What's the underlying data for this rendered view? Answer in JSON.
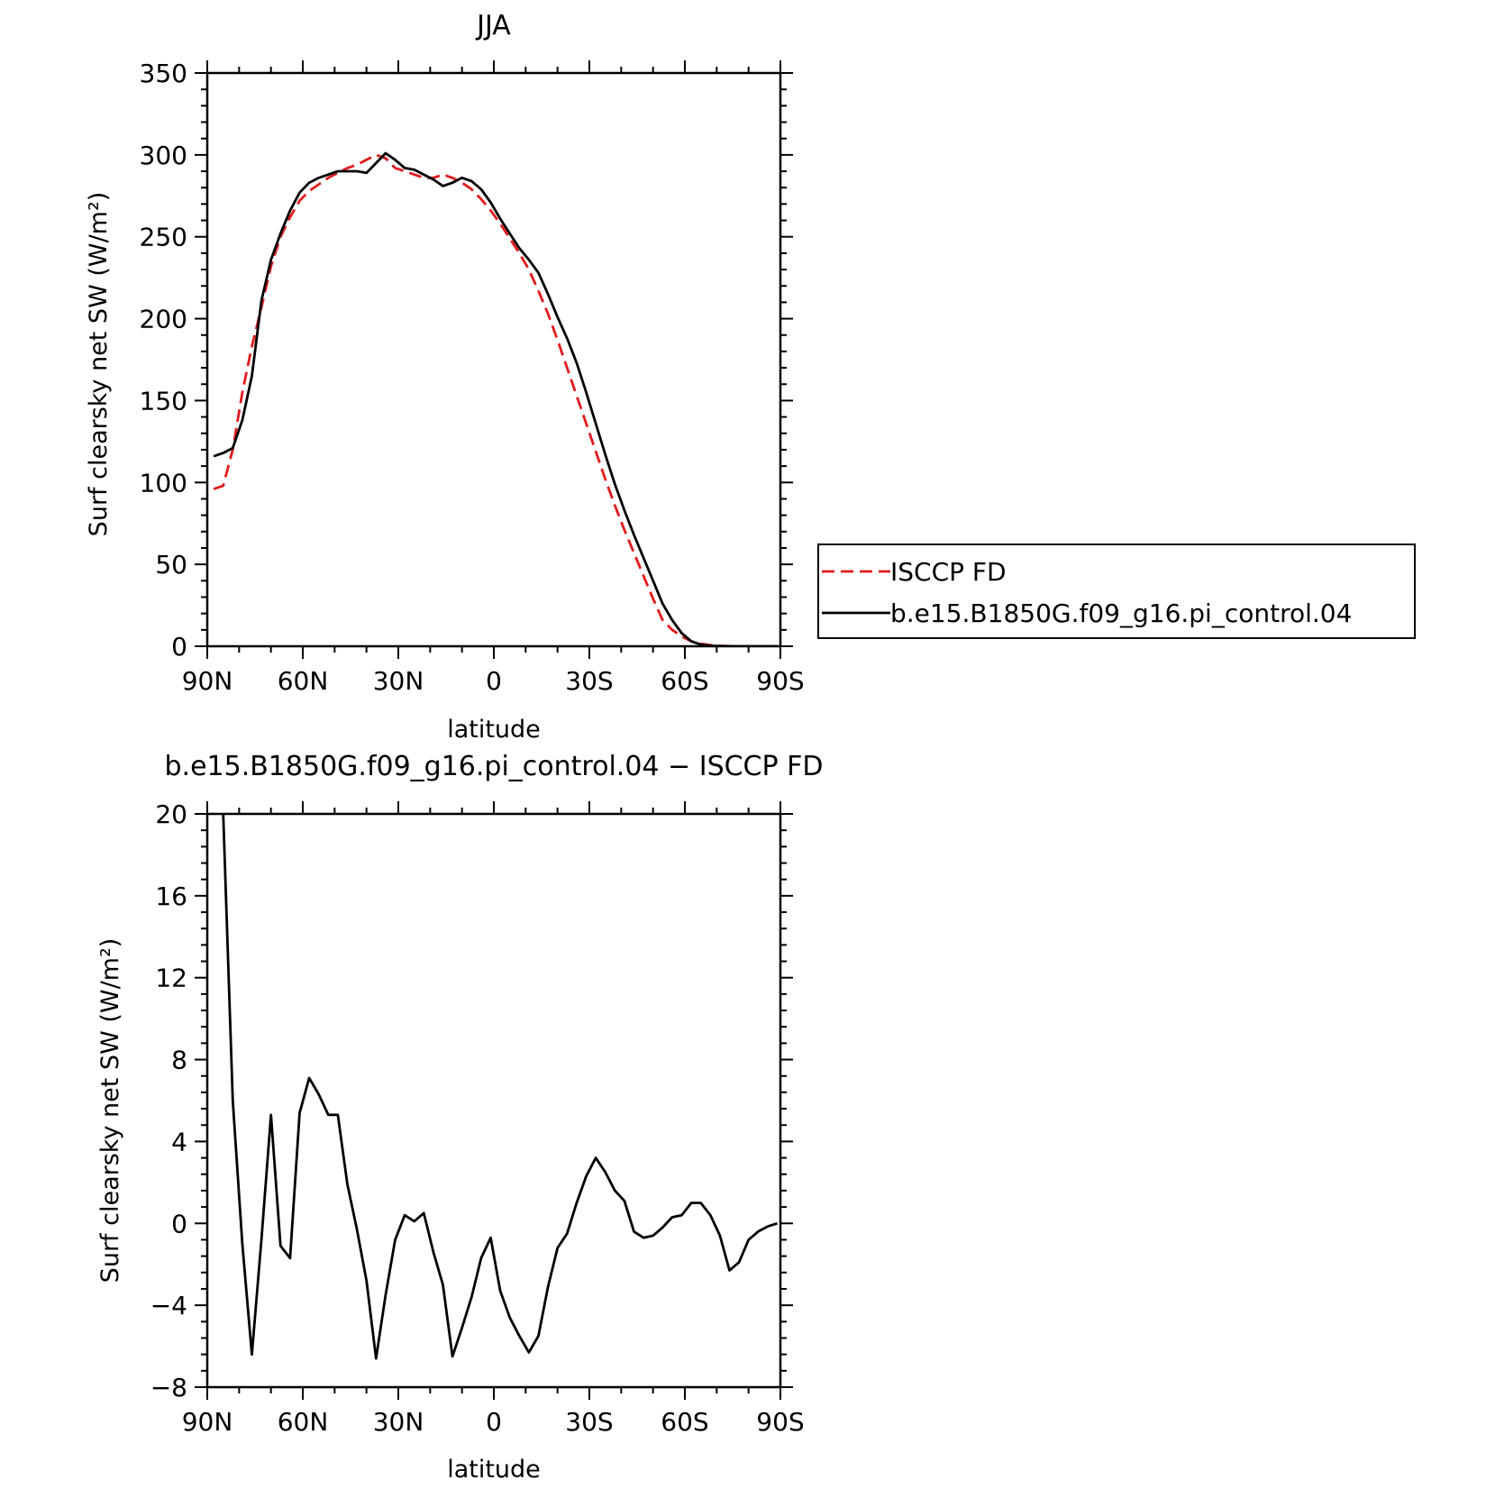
{
  "chart_data": [
    {
      "type": "line",
      "title": "JJA",
      "xlabel": "latitude",
      "ylabel": "Surf clearsky net SW (W/m²)",
      "xlim": [
        90,
        -90
      ],
      "ylim": [
        0,
        350
      ],
      "x_ticks": [
        90,
        60,
        30,
        0,
        -30,
        -60,
        -90
      ],
      "x_tick_labels": [
        "90N",
        "60N",
        "30N",
        "0",
        "30S",
        "60S",
        "90S"
      ],
      "y_ticks": [
        0,
        50,
        100,
        150,
        200,
        250,
        300,
        350
      ],
      "y_tick_labels": [
        "0",
        "50",
        "100",
        "150",
        "200",
        "250",
        "300",
        "350"
      ],
      "legend_position": "right",
      "series": [
        {
          "name": "ISCCP FD",
          "color": "#e41a1c",
          "dash": "dashed",
          "x": [
            88,
            85,
            82,
            79,
            76,
            73,
            70,
            67,
            64,
            61,
            58,
            55,
            52,
            49,
            46,
            43,
            40,
            37,
            34,
            31,
            28,
            25,
            22,
            19,
            16,
            13,
            10,
            7,
            4,
            1,
            -2,
            -5,
            -8,
            -11,
            -14,
            -17,
            -20,
            -23,
            -26,
            -29,
            -32,
            -35,
            -38,
            -41,
            -44,
            -47,
            -50,
            -53,
            -56,
            -59,
            -62,
            -65,
            -68,
            -71,
            -74,
            -77,
            -80,
            -83,
            -86,
            -89
          ],
          "values": [
            96,
            98,
            120,
            155,
            183,
            207,
            232,
            250,
            262,
            272,
            278,
            282,
            286,
            289,
            292,
            294,
            297,
            300,
            298,
            292,
            290,
            288,
            286,
            286,
            288,
            286,
            283,
            279,
            273,
            266,
            258,
            249,
            240,
            230,
            217,
            203,
            187,
            170,
            153,
            136,
            119,
            102,
            86,
            71,
            57,
            43,
            29,
            16,
            10,
            6,
            3,
            1.5,
            0.7,
            0.3,
            0.1,
            0,
            0,
            0,
            0,
            0
          ]
        },
        {
          "name": "b.e15.B1850G.f09_g16.pi_control.04",
          "color": "#000000",
          "dash": "solid",
          "x": [
            88,
            85,
            82,
            79,
            76,
            73,
            70,
            67,
            64,
            61,
            58,
            55,
            52,
            49,
            46,
            43,
            40,
            37,
            34,
            31,
            28,
            25,
            22,
            19,
            16,
            13,
            10,
            7,
            4,
            1,
            -2,
            -5,
            -8,
            -11,
            -14,
            -17,
            -20,
            -23,
            -26,
            -29,
            -32,
            -35,
            -38,
            -41,
            -44,
            -47,
            -50,
            -53,
            -56,
            -59,
            -62,
            -65,
            -68,
            -71,
            -74,
            -77,
            -80,
            -83,
            -86,
            -89
          ],
          "values": [
            116,
            118,
            121,
            138,
            165,
            211,
            236,
            252,
            266,
            277,
            283,
            286,
            288,
            290,
            290,
            290,
            289,
            295,
            301,
            297,
            292,
            291,
            288,
            285,
            281,
            283,
            286,
            284,
            279,
            271,
            261,
            252,
            243,
            236,
            228,
            215,
            201,
            188,
            173,
            155,
            136,
            117,
            99,
            83,
            68,
            54,
            40,
            26,
            16,
            8,
            3,
            1,
            0.3,
            0.1,
            0,
            0,
            0,
            0,
            0,
            0
          ]
        }
      ]
    },
    {
      "type": "line",
      "title": "b.e15.B1850G.f09_g16.pi_control.04 − ISCCP FD",
      "xlabel": "latitude",
      "ylabel": "Surf clearsky net SW (W/m²)",
      "xlim": [
        90,
        -90
      ],
      "ylim": [
        -8,
        20
      ],
      "x_ticks": [
        90,
        60,
        30,
        0,
        -30,
        -60,
        -90
      ],
      "x_tick_labels": [
        "90N",
        "60N",
        "30N",
        "0",
        "30S",
        "60S",
        "90S"
      ],
      "y_ticks": [
        -8,
        -4,
        0,
        4,
        8,
        12,
        16,
        20
      ],
      "y_tick_labels": [
        "−8",
        "−4",
        "0",
        "4",
        "8",
        "12",
        "16",
        "20"
      ],
      "series": [
        {
          "color": "#000000",
          "dash": "solid",
          "x": [
            85,
            82,
            79,
            76,
            73,
            70,
            67,
            64,
            61,
            58,
            55,
            52,
            49,
            46,
            43,
            40,
            37,
            34,
            31,
            28,
            25,
            22,
            19,
            16,
            13,
            10,
            7,
            4,
            1,
            -2,
            -5,
            -8,
            -11,
            -14,
            -17,
            -20,
            -23,
            -26,
            -29,
            -32,
            -35,
            -38,
            -41,
            -44,
            -47,
            -50,
            -53,
            -56,
            -59,
            -62,
            -65,
            -68,
            -71,
            -74,
            -77,
            -80,
            -83,
            -86,
            -89
          ],
          "values": [
            20,
            6,
            -1,
            -6.4,
            -0.8,
            5.3,
            -1.1,
            -1.7,
            5.4,
            7.1,
            6.3,
            5.3,
            5.3,
            1.9,
            -0.3,
            -2.8,
            -6.6,
            -3.5,
            -0.8,
            0.4,
            0.1,
            0.5,
            -1.4,
            -3,
            -6.5,
            -5.1,
            -3.6,
            -1.7,
            -0.7,
            -3.3,
            -4.6,
            -5.5,
            -6.3,
            -5.5,
            -3.1,
            -1.2,
            -0.5,
            1,
            2.3,
            3.2,
            2.5,
            1.6,
            1.1,
            -0.4,
            -0.7,
            -0.6,
            -0.2,
            0.3,
            0.4,
            1,
            1,
            0.4,
            -0.6,
            -2.3,
            -1.9,
            -0.8,
            -0.4,
            -0.15,
            0
          ]
        }
      ]
    }
  ]
}
